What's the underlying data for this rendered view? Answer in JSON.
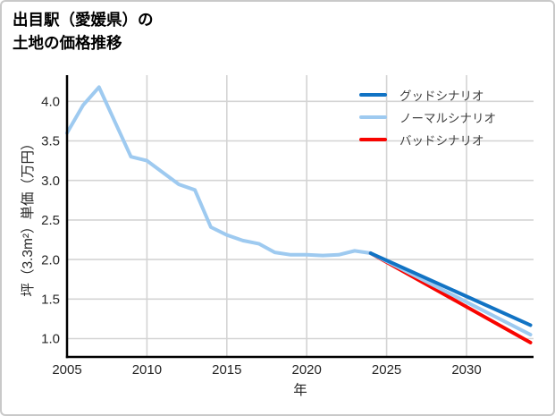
{
  "header": {
    "title_line1": "出目駅（愛媛県）の",
    "title_line2": "土地の価格推移"
  },
  "chart_data": {
    "type": "line",
    "title": "出目駅（愛媛県）の土地の価格推移",
    "title_lines": [
      "出目駅（愛媛県）の",
      "土地の価格推移"
    ],
    "xlabel": "年",
    "ylabel": "坪（3.3m²）単価（万円）",
    "x_ticks": [
      "2005",
      "2010",
      "2015",
      "2020",
      "2025",
      "2030"
    ],
    "y_ticks": [
      "1.0",
      "1.5",
      "2.0",
      "2.5",
      "3.0",
      "3.5",
      "4.0"
    ],
    "xlim": [
      2005,
      2034.3
    ],
    "ylim": [
      0.76,
      4.32
    ],
    "grid": true,
    "legend_position": "upper-right",
    "style": {
      "grid_color": "#d4d4d4",
      "axis_color": "#000000",
      "tick_color": "#262626",
      "history_color": "#9ecaf0",
      "good_color": "#1173c4",
      "normal_color": "#9ecaf0",
      "bad_color": "#f80400"
    },
    "series": [
      {
        "id": "history",
        "label": null,
        "color": "#9ecaf0",
        "x": [
          2005,
          2006,
          2007,
          2008,
          2009,
          2010,
          2011,
          2012,
          2013,
          2014,
          2015,
          2016,
          2017,
          2018,
          2019,
          2020,
          2021,
          2022,
          2023,
          2024
        ],
        "values": [
          3.6,
          3.95,
          4.18,
          3.74,
          3.3,
          3.25,
          3.1,
          2.95,
          2.88,
          2.41,
          2.31,
          2.24,
          2.2,
          2.09,
          2.06,
          2.06,
          2.05,
          2.06,
          2.11,
          2.08
        ]
      },
      {
        "id": "bad",
        "label": "バッドシナリオ",
        "legend_order": 3,
        "color": "#f80400",
        "x": [
          2024,
          2034
        ],
        "values": [
          2.08,
          0.95
        ]
      },
      {
        "id": "normal",
        "label": "ノーマルシナリオ",
        "legend_order": 2,
        "color": "#9ecaf0",
        "x": [
          2024,
          2034
        ],
        "values": [
          2.08,
          1.05
        ]
      },
      {
        "id": "good",
        "label": "グッドシナリオ",
        "legend_order": 1,
        "color": "#1173c4",
        "x": [
          2024,
          2034
        ],
        "values": [
          2.08,
          1.17
        ]
      }
    ]
  }
}
